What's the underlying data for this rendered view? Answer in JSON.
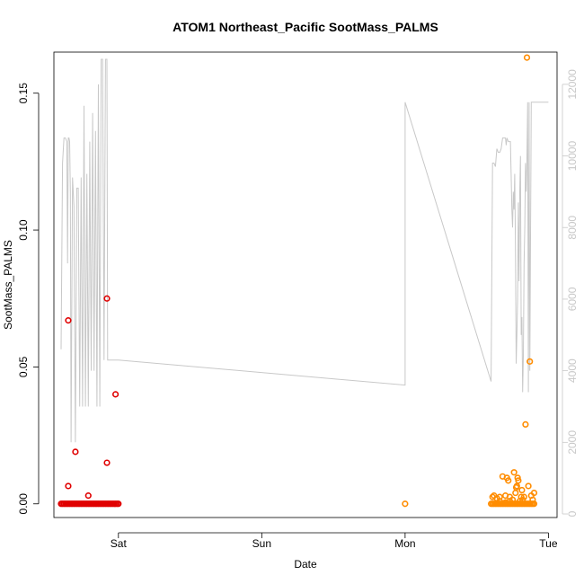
{
  "chart_data": {
    "type": "scatter",
    "title": "ATOM1 Northeast_Pacific SootMass_PALMS",
    "xlabel": "Date",
    "ylabel": "SootMass_PALMS",
    "x_axis": {
      "type": "date",
      "ticks": [
        {
          "value": 0,
          "label": "Sat"
        },
        {
          "value": 1,
          "label": "Sun"
        },
        {
          "value": 2,
          "label": "Mon"
        },
        {
          "value": 3,
          "label": "Tue"
        }
      ],
      "range": [
        -0.45,
        3.06
      ]
    },
    "y_axis": {
      "range": [
        -0.005,
        0.165
      ],
      "ticks": [
        0.0,
        0.05,
        0.1,
        0.15
      ],
      "tick_labels": [
        "0.00",
        "0.05",
        "0.10",
        "0.15"
      ]
    },
    "y2_axis": {
      "range": [
        -100,
        12900
      ],
      "ticks": [
        0,
        2000,
        4000,
        6000,
        8000,
        10000,
        12000
      ],
      "tick_labels": [
        "0",
        "2000",
        "4000",
        "6000",
        "8000",
        "10000",
        "12000"
      ],
      "color": "#c8c8c8"
    },
    "series": [
      {
        "color": "#e00000",
        "marker": "open-circle",
        "points": [
          [
            -0.35,
            0.067
          ],
          [
            -0.35,
            0.0065
          ],
          [
            -0.3,
            0.019
          ],
          [
            -0.21,
            0.003
          ],
          [
            -0.08,
            0.075
          ],
          [
            -0.08,
            0.015
          ],
          [
            -0.02,
            0.04
          ]
        ],
        "baseline_x": [
          -0.4,
          -0.39,
          -0.38,
          -0.37,
          -0.36,
          -0.35,
          -0.34,
          -0.33,
          -0.32,
          -0.31,
          -0.3,
          -0.29,
          -0.28,
          -0.27,
          -0.26,
          -0.25,
          -0.24,
          -0.23,
          -0.22,
          -0.21,
          -0.2,
          -0.19,
          -0.18,
          -0.17,
          -0.16,
          -0.15,
          -0.14,
          -0.13,
          -0.12,
          -0.11,
          -0.1,
          -0.09,
          -0.08,
          -0.07,
          -0.06,
          -0.05,
          -0.04,
          -0.03,
          -0.02,
          -0.01,
          0.0
        ],
        "baseline_y": 0
      },
      {
        "color": "#ff8c00",
        "marker": "open-circle",
        "points": [
          [
            2.0,
            0.0
          ],
          [
            2.61,
            0.0025
          ],
          [
            2.62,
            0.003
          ],
          [
            2.64,
            0.002
          ],
          [
            2.66,
            0.0025
          ],
          [
            2.68,
            0.01
          ],
          [
            2.7,
            0.003
          ],
          [
            2.71,
            0.0095
          ],
          [
            2.72,
            0.0085
          ],
          [
            2.73,
            0.0025
          ],
          [
            2.75,
            0.0015
          ],
          [
            2.76,
            0.0115
          ],
          [
            2.77,
            0.004
          ],
          [
            2.775,
            0.006
          ],
          [
            2.78,
            0.0065
          ],
          [
            2.785,
            0.0095
          ],
          [
            2.79,
            0.0085
          ],
          [
            2.8,
            0.001
          ],
          [
            2.81,
            0.0025
          ],
          [
            2.815,
            0.005
          ],
          [
            2.82,
            0.0015
          ],
          [
            2.83,
            0.0025
          ],
          [
            2.84,
            0.029
          ],
          [
            2.85,
            0.163
          ],
          [
            2.86,
            0.0065
          ],
          [
            2.87,
            0.052
          ],
          [
            2.88,
            0.003
          ],
          [
            2.89,
            0.0015
          ],
          [
            2.9,
            0.004
          ],
          [
            2.73,
            0.001
          ],
          [
            2.66,
            0.001
          ],
          [
            2.7,
            0.0005
          ]
        ],
        "baseline_x": [
          2.6,
          2.61,
          2.62,
          2.63,
          2.64,
          2.65,
          2.66,
          2.67,
          2.68,
          2.69,
          2.7,
          2.71,
          2.72,
          2.73,
          2.74,
          2.75,
          2.76,
          2.77,
          2.78,
          2.79,
          2.8,
          2.81,
          2.82,
          2.83,
          2.84,
          2.85,
          2.86,
          2.87,
          2.88,
          2.89,
          2.9
        ],
        "baseline_y": 0
      },
      {
        "color": "#c8c8c8",
        "marker": "line",
        "axis": "y2",
        "x": [
          -0.4,
          -0.39,
          -0.38,
          -0.37,
          -0.36,
          -0.355,
          -0.35,
          -0.345,
          -0.34,
          -0.335,
          -0.33,
          -0.32,
          -0.31,
          -0.3,
          -0.29,
          -0.28,
          -0.27,
          -0.26,
          -0.25,
          -0.24,
          -0.23,
          -0.22,
          -0.21,
          -0.2,
          -0.19,
          -0.18,
          -0.17,
          -0.16,
          -0.15,
          -0.14,
          -0.13,
          -0.12,
          -0.11,
          -0.1,
          -0.09,
          -0.08,
          -0.075,
          -0.07,
          -0.06,
          -0.05,
          -0.04,
          -0.035,
          -0.03,
          -0.02,
          -0.01,
          0.0,
          2.0,
          2.0,
          2.0,
          2.6,
          2.61,
          2.62,
          2.63,
          2.64,
          2.65,
          2.66,
          2.67,
          2.68,
          2.69,
          2.7,
          2.705,
          2.71,
          2.72,
          2.73,
          2.735,
          2.74,
          2.745,
          2.75,
          2.755,
          2.76,
          2.765,
          2.77,
          2.775,
          2.78,
          2.785,
          2.79,
          2.795,
          2.8,
          2.805,
          2.81,
          2.815,
          2.82,
          2.825,
          2.83,
          2.835,
          2.84,
          2.845,
          2.85,
          2.855,
          2.86,
          2.865,
          2.87,
          2.88,
          2.89,
          2.9,
          2.95,
          3.0
        ],
        "y": [
          4600,
          9800,
          10500,
          10500,
          10400,
          7000,
          10500,
          10500,
          10400,
          9000,
          2000,
          9400,
          8600,
          2000,
          9100,
          9100,
          3000,
          9400,
          3000,
          11400,
          3000,
          9500,
          3000,
          10400,
          4000,
          11200,
          4000,
          10700,
          3000,
          12000,
          3000,
          12700,
          12700,
          4300,
          12700,
          12700,
          4300,
          4300,
          4300,
          4300,
          4300,
          4300,
          4300,
          4300,
          4300,
          4300,
          3600,
          9500,
          11500,
          3700,
          9800,
          9800,
          9700,
          10200,
          10100,
          10100,
          10200,
          10500,
          10500,
          10500,
          10300,
          10500,
          10400,
          10400,
          10400,
          9500,
          8500,
          8000,
          9000,
          8500,
          9500,
          7500,
          4200,
          5000,
          6000,
          8700,
          6500,
          9000,
          10000,
          5000,
          5500,
          3400,
          4400,
          7000,
          8000,
          9800,
          9000,
          10000,
          11500,
          3400,
          11500,
          4000,
          11500,
          11500,
          11500,
          11500,
          11500
        ]
      }
    ]
  }
}
